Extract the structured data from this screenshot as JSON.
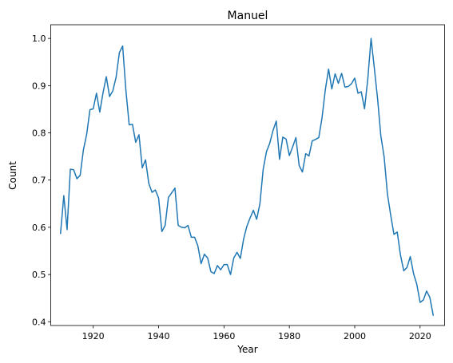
{
  "chart_data": {
    "type": "line",
    "title": "Manuel",
    "xlabel": "Year",
    "ylabel": "Count",
    "xlim": [
      1907,
      2027.5
    ],
    "ylim": [
      0.392,
      1.029
    ],
    "xticks": [
      1920,
      1940,
      1960,
      1980,
      2000,
      2020
    ],
    "xtick_labels": [
      "1920",
      "1940",
      "1960",
      "1980",
      "2000",
      "2020"
    ],
    "yticks": [
      0.4,
      0.5,
      0.6,
      0.7,
      0.8,
      0.9,
      1.0
    ],
    "ytick_labels": [
      "0.4",
      "0.5",
      "0.6",
      "0.7",
      "0.8",
      "0.9",
      "1.0"
    ],
    "grid": false,
    "line_color": "#1f77b4",
    "x": [
      1910,
      1911,
      1912,
      1913,
      1914,
      1915,
      1916,
      1917,
      1918,
      1919,
      1920,
      1921,
      1922,
      1923,
      1924,
      1925,
      1926,
      1927,
      1928,
      1929,
      1930,
      1931,
      1932,
      1933,
      1934,
      1935,
      1936,
      1937,
      1938,
      1939,
      1940,
      1941,
      1942,
      1943,
      1944,
      1945,
      1946,
      1947,
      1948,
      1949,
      1950,
      1951,
      1952,
      1953,
      1954,
      1955,
      1956,
      1957,
      1958,
      1959,
      1960,
      1961,
      1962,
      1963,
      1964,
      1965,
      1966,
      1967,
      1968,
      1969,
      1970,
      1971,
      1972,
      1973,
      1974,
      1975,
      1976,
      1977,
      1978,
      1979,
      1980,
      1981,
      1982,
      1983,
      1984,
      1985,
      1986,
      1987,
      1988,
      1989,
      1990,
      1991,
      1992,
      1993,
      1994,
      1995,
      1996,
      1997,
      1998,
      1999,
      2000,
      2001,
      2002,
      2003,
      2004,
      2005,
      2006,
      2007,
      2008,
      2009,
      2010,
      2011,
      2012,
      2013,
      2014,
      2015,
      2016,
      2017,
      2018,
      2019,
      2020,
      2021,
      2022,
      2023,
      2024
    ],
    "y": [
      0.587,
      0.667,
      0.595,
      0.723,
      0.722,
      0.703,
      0.71,
      0.764,
      0.797,
      0.849,
      0.851,
      0.884,
      0.844,
      0.885,
      0.919,
      0.877,
      0.889,
      0.918,
      0.97,
      0.984,
      0.89,
      0.817,
      0.818,
      0.78,
      0.796,
      0.726,
      0.743,
      0.693,
      0.674,
      0.679,
      0.662,
      0.591,
      0.604,
      0.663,
      0.673,
      0.683,
      0.604,
      0.6,
      0.599,
      0.604,
      0.579,
      0.579,
      0.561,
      0.523,
      0.543,
      0.535,
      0.506,
      0.502,
      0.519,
      0.51,
      0.521,
      0.521,
      0.5,
      0.535,
      0.547,
      0.534,
      0.575,
      0.602,
      0.62,
      0.636,
      0.617,
      0.65,
      0.723,
      0.76,
      0.778,
      0.805,
      0.825,
      0.744,
      0.791,
      0.787,
      0.752,
      0.77,
      0.79,
      0.731,
      0.717,
      0.756,
      0.751,
      0.783,
      0.786,
      0.79,
      0.832,
      0.891,
      0.935,
      0.893,
      0.925,
      0.905,
      0.926,
      0.897,
      0.898,
      0.904,
      0.916,
      0.884,
      0.887,
      0.851,
      0.914,
      1.0,
      0.937,
      0.872,
      0.793,
      0.749,
      0.671,
      0.626,
      0.585,
      0.59,
      0.541,
      0.508,
      0.515,
      0.538,
      0.502,
      0.479,
      0.441,
      0.446,
      0.465,
      0.451,
      0.414
    ]
  }
}
